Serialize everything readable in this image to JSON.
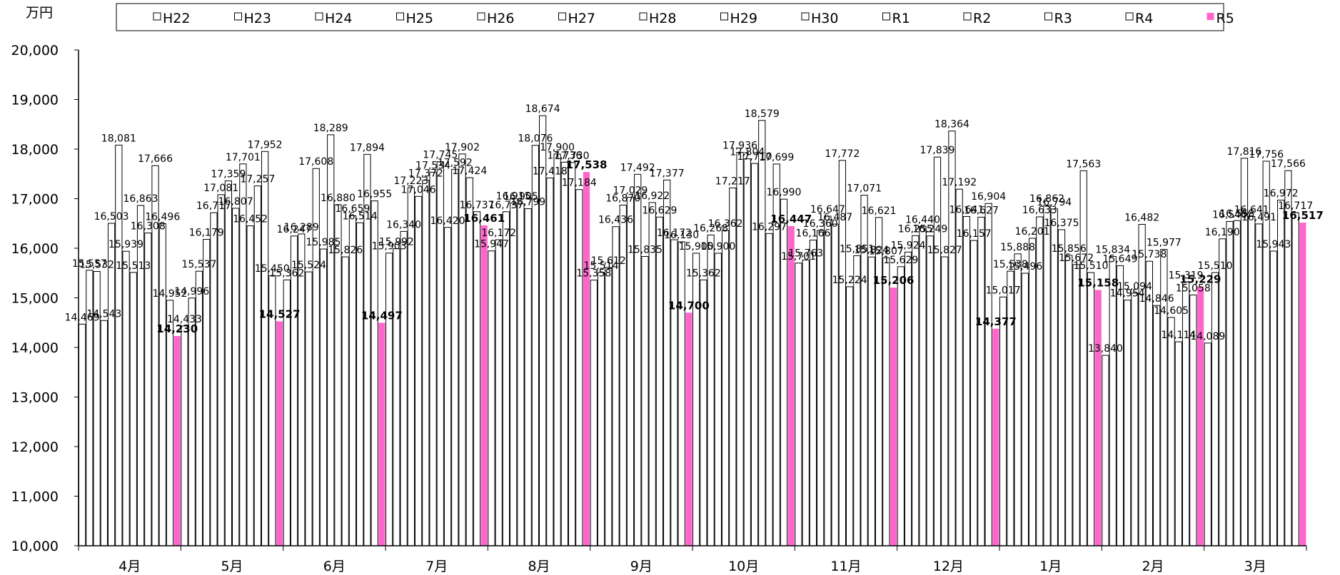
{
  "chart_data": {
    "type": "bar",
    "unit_label": "万円",
    "categories": [
      "4月",
      "5月",
      "6月",
      "7月",
      "8月",
      "9月",
      "10月",
      "11月",
      "12月",
      "1月",
      "2月",
      "3月"
    ],
    "ylim": [
      10000,
      20000
    ],
    "yticks": [
      "10,000",
      "11,000",
      "12,000",
      "13,000",
      "14,000",
      "15,000",
      "16,000",
      "17,000",
      "18,000",
      "19,000",
      "20,000"
    ],
    "legend_position": "top",
    "grid": false,
    "highlight_color": "#ff66cc",
    "default_color": "#ffffff",
    "series": [
      {
        "name": "H22",
        "values": [
          14469,
          14433,
          15362,
          15903,
          15947,
          15358,
          15900,
          15701,
          15629,
          15017,
          13840,
          14089
        ]
      },
      {
        "name": "H23",
        "values": [
          15557,
          14996,
          16247,
          15992,
          16172,
          15514,
          15362,
          15763,
          15924,
          15538,
          15834,
          15510
        ]
      },
      {
        "name": "H24",
        "values": [
          15532,
          15537,
          16289,
          16340,
          16737,
          15612,
          16268,
          16166,
          16255,
          15888,
          15649,
          16190
        ]
      },
      {
        "name": "H25",
        "values": [
          14543,
          16179,
          15524,
          17223,
          16915,
          16436,
          15900,
          16360,
          16440,
          15496,
          14954,
          16540
        ]
      },
      {
        "name": "H26",
        "values": [
          16503,
          16717,
          17608,
          17046,
          16905,
          16870,
          16362,
          16647,
          16249,
          16201,
          15094,
          16558
        ]
      },
      {
        "name": "H27",
        "values": [
          18081,
          17081,
          15985,
          17372,
          16799,
          17029,
          17217,
          16487,
          17839,
          16633,
          16482,
          17816
        ]
      },
      {
        "name": "H28",
        "values": [
          15939,
          17359,
          18289,
          17534,
          18076,
          17492,
          17936,
          17772,
          15827,
          16862,
          15738,
          16641
        ]
      },
      {
        "name": "H29",
        "values": [
          15513,
          16807,
          16880,
          17745,
          18674,
          15835,
          17804,
          15224,
          18364,
          16794,
          14846,
          16491
        ]
      },
      {
        "name": "H30",
        "values": [
          16863,
          17701,
          15826,
          16420,
          17418,
          16922,
          17710,
          15851,
          17192,
          16375,
          15977,
          17756
        ]
      },
      {
        "name": "R1",
        "values": [
          16308,
          16452,
          16659,
          17592,
          17900,
          16629,
          18579,
          17071,
          16641,
          15856,
          14605,
          15943
        ]
      },
      {
        "name": "R2",
        "values": [
          17666,
          17257,
          16514,
          17902,
          17736,
          17377,
          16297,
          15824,
          16157,
          15672,
          14114,
          16972
        ]
      },
      {
        "name": "R3",
        "values": [
          16496,
          17952,
          17894,
          17424,
          17730,
          16172,
          17699,
          16621,
          16627,
          17563,
          15319,
          17566
        ]
      },
      {
        "name": "R4",
        "values": [
          14952,
          15450,
          16955,
          16737,
          17184,
          16130,
          16990,
          15807,
          16904,
          15510,
          15058,
          16717
        ]
      },
      {
        "name": "R5",
        "values": [
          14230,
          14527,
          14497,
          16461,
          17538,
          14700,
          16447,
          15206,
          14377,
          15158,
          15229,
          16517
        ]
      }
    ]
  }
}
